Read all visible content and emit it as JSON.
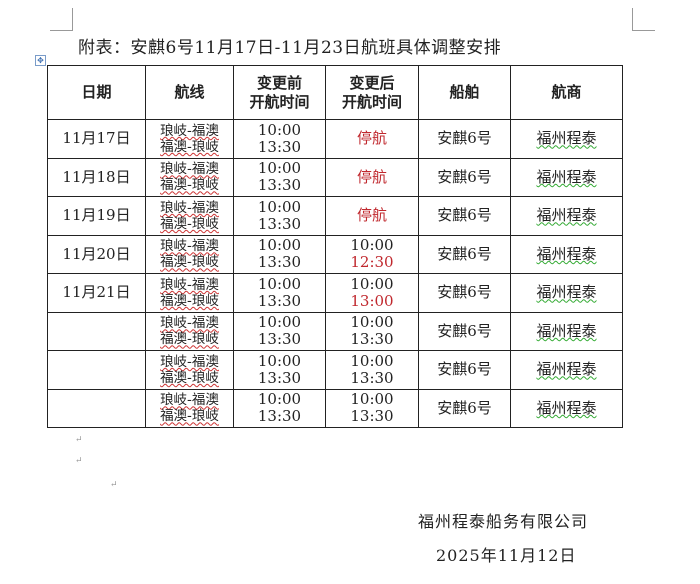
{
  "title": "附表：安麒6号11月17日-11月23日航班具体调整安排",
  "headers": [
    "日期",
    "航线",
    "变更前\n开航时间",
    "变更后\n开航时间",
    "船舶",
    "航商"
  ],
  "headers_lines": {
    "date": "日期",
    "route": "航线",
    "before1": "变更前",
    "before2": "开航时间",
    "after1": "变更后",
    "after2": "开航时间",
    "ship": "船舶",
    "operator": "航商"
  },
  "rows": [
    {
      "date": "11月17日",
      "route1": "琅岐-福澳",
      "route2": "福澳-琅岐",
      "before1": "10:00",
      "before2": "13:30",
      "after1": "停航",
      "after2": "",
      "ship": "安麒6号",
      "operator": "福州程泰"
    },
    {
      "date": "11月18日",
      "route1": "琅岐-福澳",
      "route2": "福澳-琅岐",
      "before1": "10:00",
      "before2": "13:30",
      "after1": "停航",
      "after2": "",
      "ship": "安麒6号",
      "operator": "福州程泰"
    },
    {
      "date": "11月19日",
      "route1": "琅岐-福澳",
      "route2": "福澳-琅岐",
      "before1": "10:00",
      "before2": "13:30",
      "after1": "停航",
      "after2": "",
      "ship": "安麒6号",
      "operator": "福州程泰"
    },
    {
      "date": "11月20日",
      "route1": "琅岐-福澳",
      "route2": "福澳-琅岐",
      "before1": "10:00",
      "before2": "13:30",
      "after1": "10:00",
      "after2": "12:30",
      "ship": "安麒6号",
      "operator": "福州程泰"
    },
    {
      "date": "11月21日",
      "route1": "琅岐-福澳",
      "route2": "福澳-琅岐",
      "before1": "10:00",
      "before2": "13:30",
      "after1": "10:00",
      "after2": "13:00",
      "ship": "安麒6号",
      "operator": "福州程泰"
    },
    {
      "date": "",
      "route1": "琅岐-福澳",
      "route2": "福澳-琅岐",
      "before1": "10:00",
      "before2": "13:30",
      "after1": "10:00",
      "after2": "13:30",
      "ship": "安麒6号",
      "operator": "福州程泰"
    },
    {
      "date": "",
      "route1": "琅岐-福澳",
      "route2": "福澳-琅岐",
      "before1": "10:00",
      "before2": "13:30",
      "after1": "10:00",
      "after2": "13:30",
      "ship": "安麒6号",
      "operator": "福州程泰"
    },
    {
      "date": "",
      "route1": "琅岐-福澳",
      "route2": "福澳-琅岐",
      "before1": "10:00",
      "before2": "13:30",
      "after1": "10:00",
      "after2": "13:30",
      "ship": "安麒6号",
      "operator": "福州程泰"
    }
  ],
  "signature": {
    "company": "福州程泰船务有限公司",
    "date": "2025年11月12日"
  },
  "colors": {
    "changed": "#c0282e"
  }
}
